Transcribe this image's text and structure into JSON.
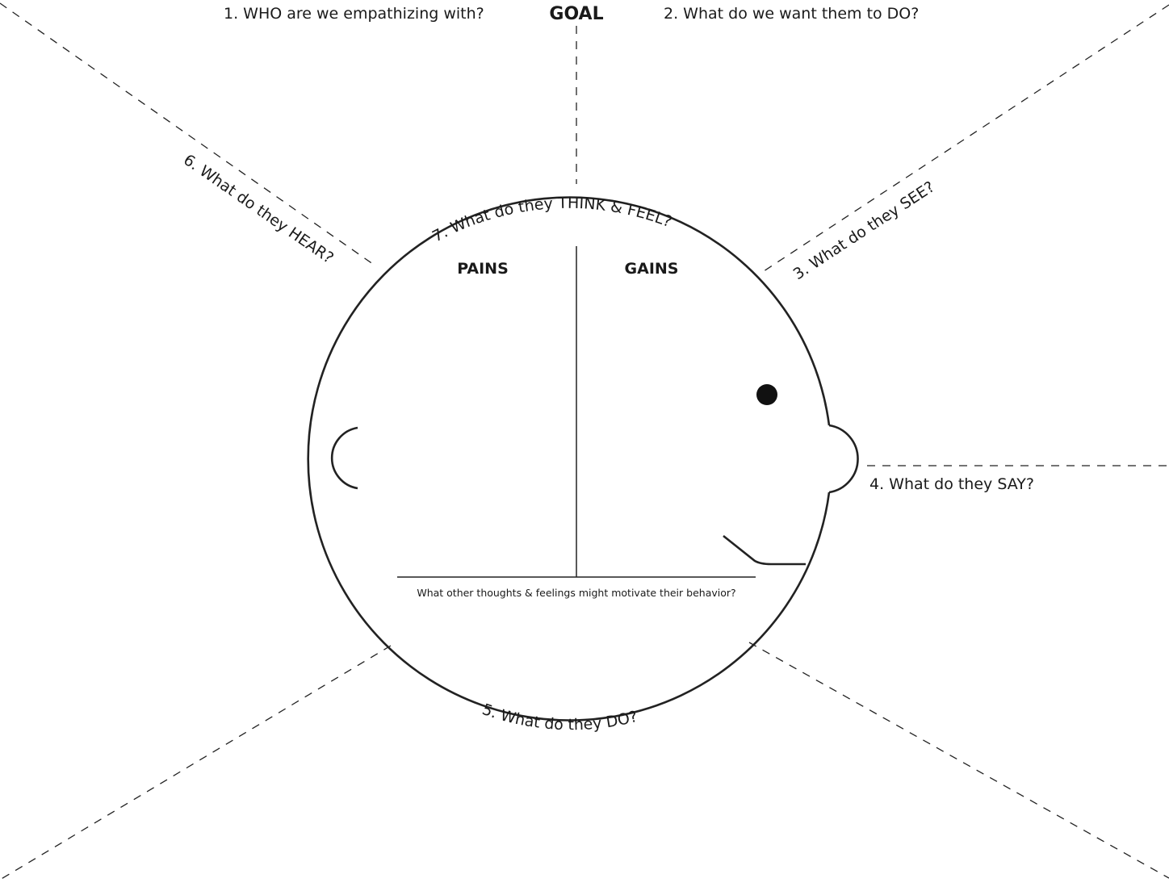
{
  "header": {
    "who_label": "1. WHO are we empathizing with?",
    "goal_label": "GOAL",
    "do_want_label": "2. What do we want them to DO?"
  },
  "sections": {
    "see_label": "3. What do they SEE?",
    "say_label": "4. What do they SAY?",
    "do_label": "5. What do they DO?",
    "hear_label": "6. What do they HEAR?",
    "think_feel_label": "7. What do they THINK & FEEL?"
  },
  "head": {
    "pains_label": "PAINS",
    "gains_label": "GAINS",
    "motivation_label": "What other thoughts & feelings might motivate their behavior?"
  },
  "colors": {
    "ink": "#222222",
    "background": "#ffffff"
  }
}
